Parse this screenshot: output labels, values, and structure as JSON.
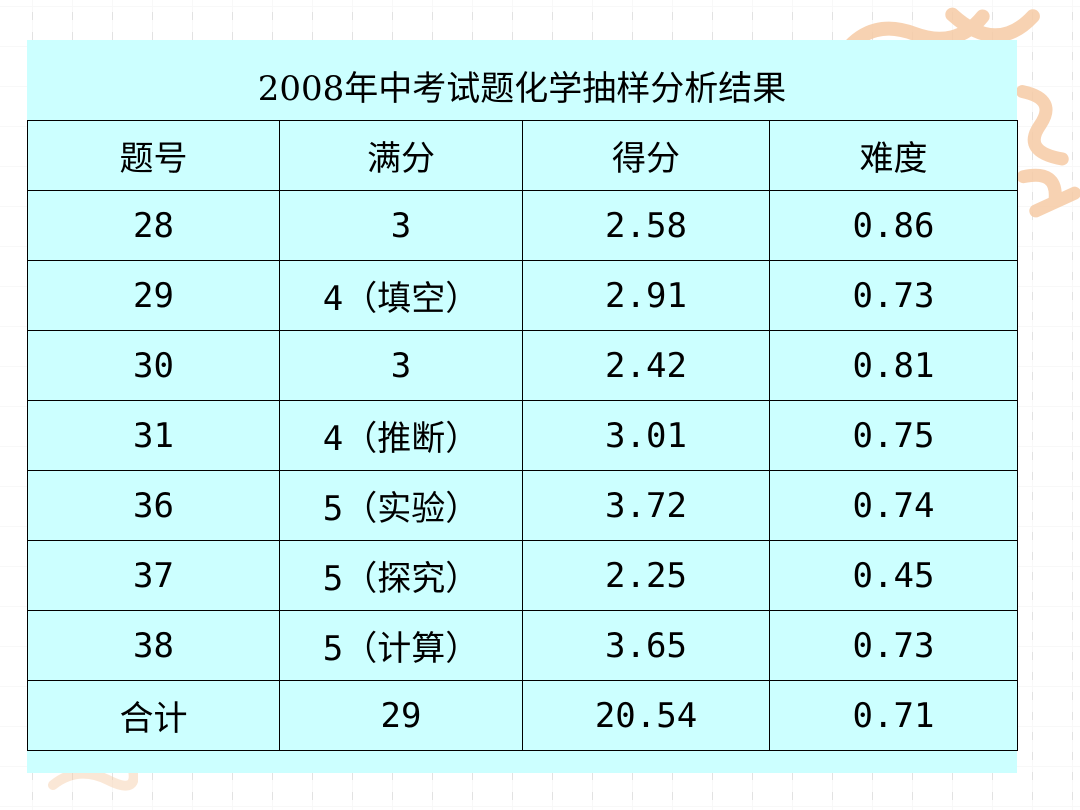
{
  "table": {
    "title": "2008年中考试题化学抽样分析结果",
    "headers": [
      "题号",
      "满分",
      "得分",
      "难度"
    ],
    "rows": [
      [
        "28",
        "3",
        "2.58",
        "0.86"
      ],
      [
        "29",
        "4（填空）",
        "2.91",
        "0.73"
      ],
      [
        "30",
        "3",
        "2.42",
        "0.81"
      ],
      [
        "31",
        "4（推断）",
        "3.01",
        "0.75"
      ],
      [
        "36",
        "5（实验）",
        "3.72",
        "0.74"
      ],
      [
        "37",
        "5（探究）",
        "2.25",
        "0.45"
      ],
      [
        "38",
        "5（计算）",
        "3.65",
        "0.73"
      ],
      [
        "合计",
        "29",
        "20.54",
        "0.71"
      ]
    ]
  },
  "colors": {
    "table_background": "#ccffff",
    "border": "#000000",
    "decoration": "#f6cba5"
  }
}
